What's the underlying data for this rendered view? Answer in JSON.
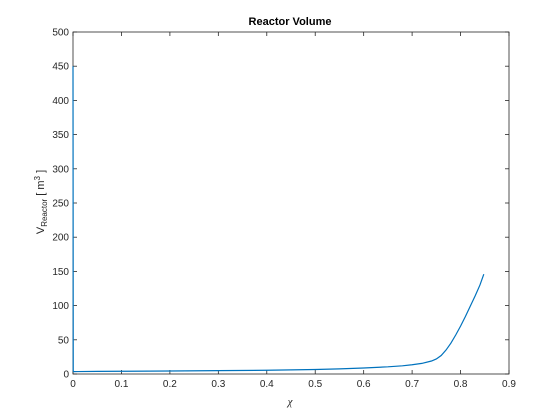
{
  "chart_data": {
    "type": "line",
    "title": "Reactor Volume",
    "xlabel": "χ",
    "ylabel": {
      "main": "V",
      "sub": "Reactor",
      "unit_open": " [ m",
      "sup": "3",
      "unit_close": " ]"
    },
    "xlim": [
      0,
      0.9
    ],
    "ylim": [
      0,
      500
    ],
    "xticks": [
      "0",
      "0.1",
      "0.2",
      "0.3",
      "0.4",
      "0.5",
      "0.6",
      "0.7",
      "0.8",
      "0.9"
    ],
    "yticks": [
      "0",
      "50",
      "100",
      "150",
      "200",
      "250",
      "300",
      "350",
      "400",
      "450",
      "500"
    ],
    "grid": false,
    "line_color": "#0072BD",
    "series": [
      {
        "x": [
          0,
          0.0005,
          0.001,
          0.01,
          0.05,
          0.1,
          0.2,
          0.3,
          0.4,
          0.5,
          0.55,
          0.6,
          0.65,
          0.68,
          0.7,
          0.72,
          0.74,
          0.75,
          0.76,
          0.77,
          0.78,
          0.79,
          0.8,
          0.81,
          0.82,
          0.83,
          0.84,
          0.848
        ],
        "y": [
          450,
          5,
          3.5,
          3.6,
          3.8,
          4.0,
          4.4,
          4.9,
          5.5,
          6.6,
          7.5,
          8.8,
          10.5,
          12,
          13.5,
          15.5,
          19,
          22,
          27,
          35,
          45,
          57,
          70,
          84,
          99,
          114,
          130,
          146
        ]
      }
    ]
  }
}
